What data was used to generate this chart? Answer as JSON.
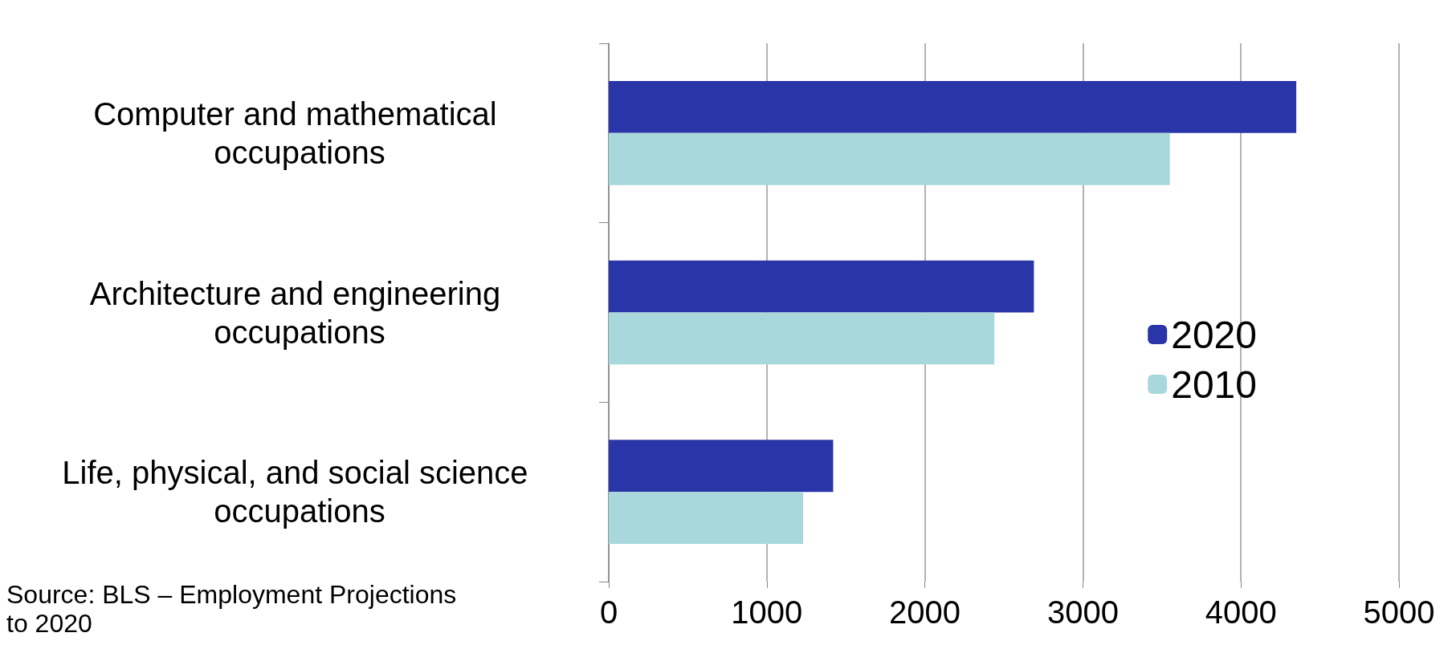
{
  "chart_data": {
    "type": "bar",
    "orientation": "horizontal",
    "categories": [
      "Computer and mathematical occupations",
      "Architecture and engineering occupations",
      "Life, physical, and social science occupations"
    ],
    "series": [
      {
        "name": "2020",
        "color": "#2a35a8",
        "values": [
          4350,
          2690,
          1420
        ]
      },
      {
        "name": "2010",
        "color": "#a8d8dc",
        "values": [
          3550,
          2440,
          1230
        ]
      }
    ],
    "xlim": [
      0,
      5000
    ],
    "xticks": [
      0,
      1000,
      2000,
      3000,
      4000,
      5000
    ],
    "grid": "x",
    "legend": "right",
    "annotations": [
      "Source: BLS – Employment Projections to 2020"
    ]
  }
}
